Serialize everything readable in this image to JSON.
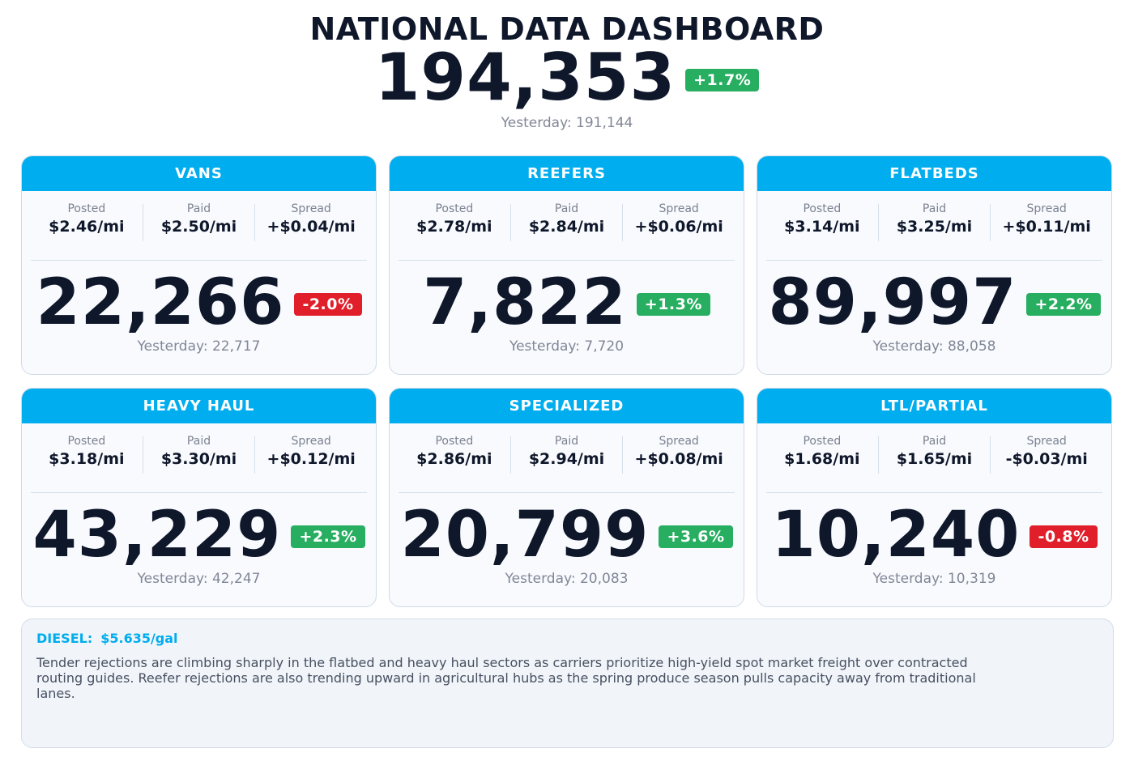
{
  "header": {
    "title": "NATIONAL DATA DASHBOARD",
    "total": "194,353",
    "change": "+1.7%",
    "change_direction": "up",
    "yesterday": "Yesterday: 191,144"
  },
  "colors": {
    "accent": "#00adee",
    "up": "#27ae60",
    "down": "#e01f2a",
    "text": "#0f172a",
    "muted": "#808796"
  },
  "labels": {
    "posted": "Posted",
    "paid": "Paid",
    "spread": "Spread"
  },
  "cards": [
    {
      "name": "VANS",
      "posted": "$2.46/mi",
      "paid": "$2.50/mi",
      "spread": "+$0.04/mi",
      "value": "22,266",
      "change": "-2.0%",
      "direction": "down",
      "yesterday": "Yesterday: 22,717"
    },
    {
      "name": "REEFERS",
      "posted": "$2.78/mi",
      "paid": "$2.84/mi",
      "spread": "+$0.06/mi",
      "value": "7,822",
      "change": "+1.3%",
      "direction": "up",
      "yesterday": "Yesterday: 7,720"
    },
    {
      "name": "FLATBEDS",
      "posted": "$3.14/mi",
      "paid": "$3.25/mi",
      "spread": "+$0.11/mi",
      "value": "89,997",
      "change": "+2.2%",
      "direction": "up",
      "yesterday": "Yesterday: 88,058"
    },
    {
      "name": "HEAVY HAUL",
      "posted": "$3.18/mi",
      "paid": "$3.30/mi",
      "spread": "+$0.12/mi",
      "value": "43,229",
      "change": "+2.3%",
      "direction": "up",
      "yesterday": "Yesterday: 42,247"
    },
    {
      "name": "SPECIALIZED",
      "posted": "$2.86/mi",
      "paid": "$2.94/mi",
      "spread": "+$0.08/mi",
      "value": "20,799",
      "change": "+3.6%",
      "direction": "up",
      "yesterday": "Yesterday: 20,083"
    },
    {
      "name": "LTL/PARTIAL",
      "posted": "$1.68/mi",
      "paid": "$1.65/mi",
      "spread": "-$0.03/mi",
      "value": "10,240",
      "change": "-0.8%",
      "direction": "down",
      "yesterday": "Yesterday: 10,319"
    }
  ],
  "notes": {
    "diesel_label": "DIESEL:",
    "diesel_value": "$5.635/gal",
    "commentary": "Tender rejections are climbing sharply in the flatbed and heavy haul sectors as carriers prioritize high-yield spot market freight over contracted routing guides. Reefer rejections are also trending upward in agricultural hubs as the spring produce season pulls capacity away from traditional lanes."
  }
}
